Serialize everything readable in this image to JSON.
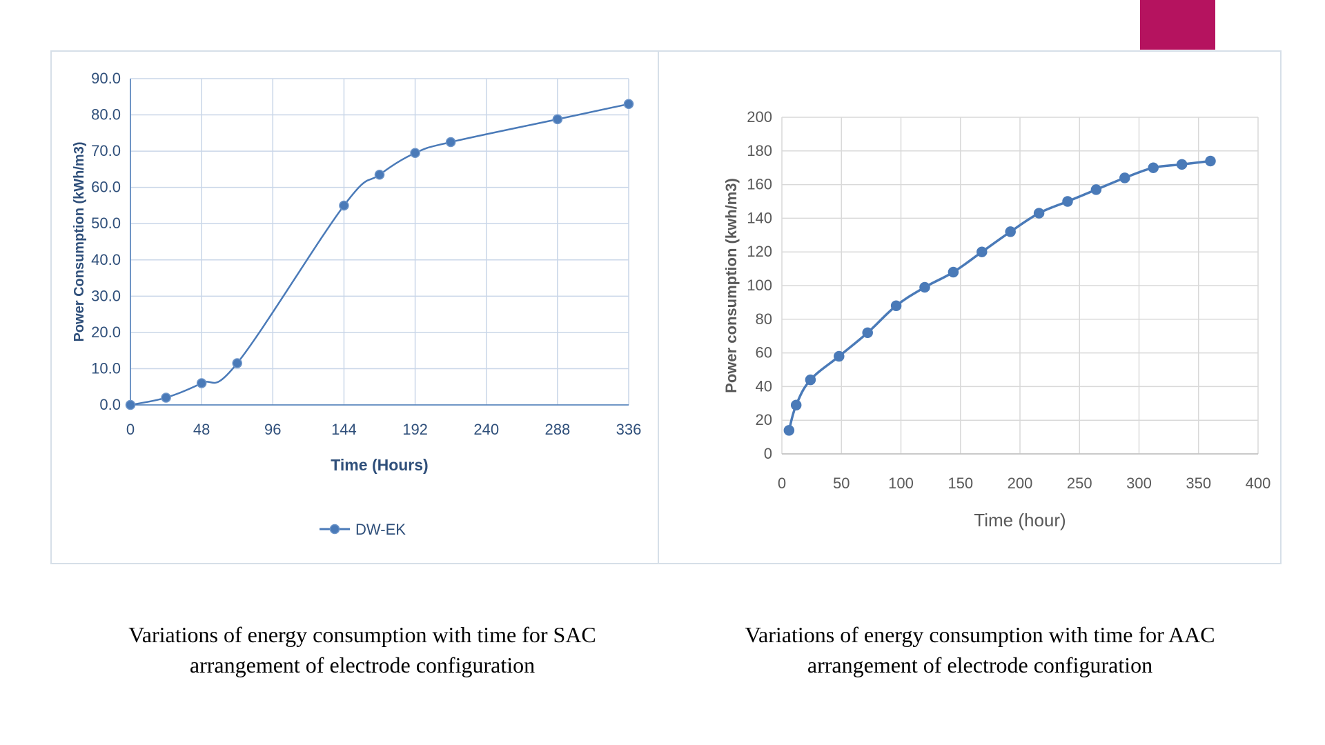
{
  "accent_color": "#b5135f",
  "chart_data": [
    {
      "type": "line",
      "title": "",
      "xlabel": "Time (Hours)",
      "ylabel": "Power Consumption (kWh/m3)",
      "xlim": [
        0,
        336
      ],
      "ylim": [
        0,
        90
      ],
      "x_ticks": [
        "0",
        "48",
        "96",
        "144",
        "192",
        "240",
        "288",
        "336"
      ],
      "y_ticks": [
        "0.0",
        "10.0",
        "20.0",
        "30.0",
        "40.0",
        "50.0",
        "60.0",
        "70.0",
        "80.0",
        "90.0"
      ],
      "grid": true,
      "smooth": true,
      "legend": "bottom",
      "color": "#4a7ab8",
      "series": [
        {
          "name": "DW-EK",
          "x": [
            0,
            24,
            48,
            72,
            144,
            168,
            192,
            216,
            288,
            336
          ],
          "y": [
            0.0,
            2.0,
            6.0,
            11.5,
            55.0,
            63.5,
            69.5,
            72.5,
            78.8,
            83.0
          ]
        }
      ]
    },
    {
      "type": "line",
      "title": "",
      "xlabel": "Time (hour)",
      "ylabel": "Power consumption (kwh/m3)",
      "xlim": [
        0,
        400
      ],
      "ylim": [
        0,
        200
      ],
      "x_ticks": [
        "0",
        "50",
        "100",
        "150",
        "200",
        "250",
        "300",
        "350",
        "400"
      ],
      "y_ticks": [
        "0",
        "20",
        "40",
        "60",
        "80",
        "100",
        "120",
        "140",
        "160",
        "180",
        "200"
      ],
      "grid": true,
      "smooth": true,
      "color": "#4a7ab8",
      "series": [
        {
          "x": [
            6,
            12,
            24,
            48,
            72,
            96,
            120,
            144,
            168,
            192,
            216,
            240,
            264,
            288,
            312,
            336,
            360
          ],
          "y": [
            14,
            29,
            44,
            58,
            72,
            88,
            99,
            108,
            120,
            132,
            143,
            150,
            157,
            164,
            170,
            172,
            174
          ]
        }
      ]
    }
  ],
  "captions": {
    "left_line1": "Variations of energy consumption with time for SAC",
    "left_line2": "arrangement of electrode configuration",
    "right_line1": "Variations of energy consumption with time for AAC",
    "right_line2": "arrangement of electrode configuration"
  }
}
